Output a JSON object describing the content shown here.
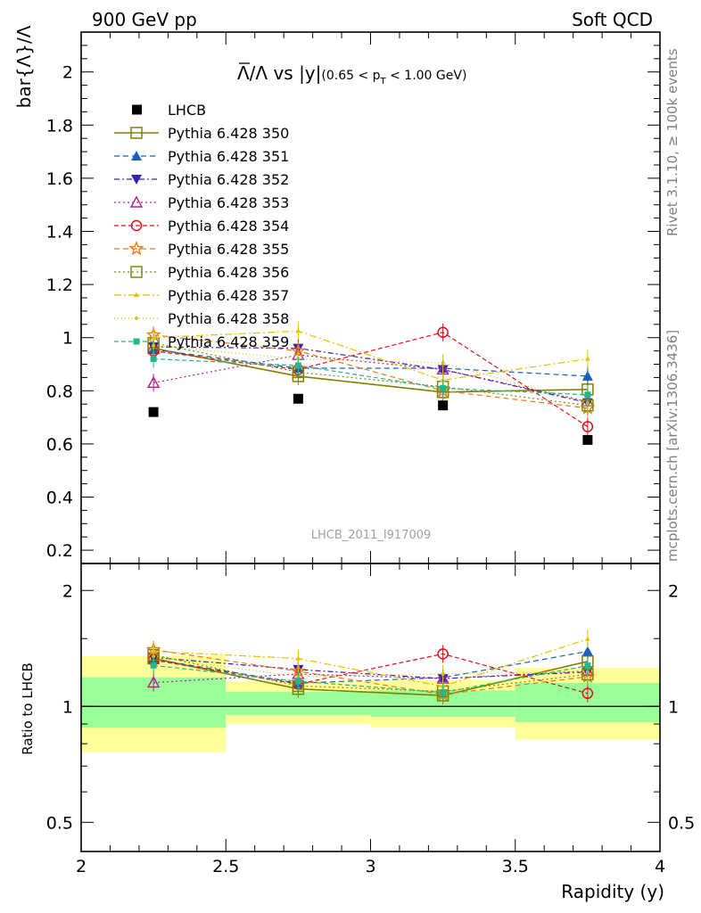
{
  "header": {
    "left": "900 GeV pp",
    "right": "Soft QCD"
  },
  "side_labels": {
    "rivet": "Rivet 3.1.10, ≥ 100k events",
    "mcplots": "mcplots.cern.ch [arXiv:1306.3436]"
  },
  "chart_data": [
    {
      "type": "line",
      "title": "Λ̅/Λ vs |y|(0.65 < p_T < 1.00 GeV)",
      "title_main": "Λ/Λ vs |y|",
      "title_small": "(0.65 < p",
      "title_sub": "T",
      "title_small_end": " < 1.00 GeV)",
      "ylabel": "bar{Λ}/Λ",
      "xlabel": "Rapidity (y)",
      "watermark": "LHCB_2011_I917009",
      "xlim": [
        2,
        4
      ],
      "ylim": [
        0.15,
        2.15
      ],
      "yticks": [
        "0.2",
        "0.4",
        "0.6",
        "0.8",
        "1",
        "1.2",
        "1.4",
        "1.6",
        "1.8",
        "2"
      ],
      "xticks": [
        "2",
        "2.5",
        "3",
        "3.5",
        "4"
      ],
      "legend_position": "top-left",
      "x": [
        2.25,
        2.75,
        3.25,
        3.75
      ],
      "data": {
        "name": "LHCB",
        "y": [
          0.72,
          0.77,
          0.745,
          0.615
        ],
        "err": [
          0.01,
          0.01,
          0.015,
          0.015
        ]
      },
      "series": [
        {
          "name": "Pythia 6.428 350",
          "color": "#808000",
          "marker": "square-open",
          "dash": "",
          "width": 1.6,
          "y": [
            0.96,
            0.855,
            0.795,
            0.805
          ]
        },
        {
          "name": "Pythia 6.428 351",
          "color": "#1560bd",
          "marker": "triangle-up",
          "dash": "6,4",
          "width": 1.2,
          "y": [
            0.955,
            0.885,
            0.885,
            0.855
          ]
        },
        {
          "name": "Pythia 6.428 352",
          "color": "#3a1fa8",
          "marker": "triangle-down",
          "dash": "6,3,2,3",
          "width": 1.2,
          "y": [
            0.965,
            0.96,
            0.88,
            0.755
          ]
        },
        {
          "name": "Pythia 6.428 353",
          "color": "#b0208a",
          "marker": "triangle-open",
          "dash": "2,3",
          "width": 1.2,
          "y": [
            0.83,
            0.935,
            0.88,
            0.76
          ]
        },
        {
          "name": "Pythia 6.428 354",
          "color": "#e0101c",
          "marker": "circle-open",
          "dash": "5,3",
          "width": 1.2,
          "y": [
            0.95,
            0.88,
            1.02,
            0.665
          ]
        },
        {
          "name": "Pythia 6.428 355",
          "color": "#f07818",
          "marker": "star-open",
          "dash": "6,4",
          "width": 1.2,
          "y": [
            1.01,
            0.95,
            0.8,
            0.735
          ]
        },
        {
          "name": "Pythia 6.428 356",
          "color": "#7a8a10",
          "marker": "square-open",
          "dash": "2,3",
          "width": 1.2,
          "y": [
            0.98,
            0.87,
            0.815,
            0.745
          ]
        },
        {
          "name": "Pythia 6.428 357",
          "color": "#e6c000",
          "marker": "tri-small",
          "dash": "8,3,2,3",
          "width": 1.2,
          "y": [
            1.0,
            1.025,
            0.84,
            0.92
          ]
        },
        {
          "name": "Pythia 6.428 358",
          "color": "#c8c820",
          "marker": "dot",
          "dash": "1,3",
          "width": 1.3,
          "y": [
            0.97,
            0.92,
            0.905,
            0.755
          ]
        },
        {
          "name": "Pythia 6.428 359",
          "color": "#20b888",
          "marker": "square-filled",
          "dash": "5,3",
          "width": 1.2,
          "y": [
            0.92,
            0.895,
            0.81,
            0.785
          ]
        }
      ]
    },
    {
      "type": "line",
      "ylabel": "Ratio to LHCB",
      "xlabel": "Rapidity (y)",
      "xlim": [
        2,
        4
      ],
      "ylim": [
        0.42,
        2.35
      ],
      "yscale": "log",
      "yticks": [
        "0.5",
        "1",
        "2"
      ],
      "xticks": [
        "2",
        "2.5",
        "3",
        "3.5",
        "4"
      ],
      "bands": [
        {
          "x0": 2.0,
          "x1": 2.5,
          "green": [
            0.88,
            1.19
          ],
          "yellow": [
            0.76,
            1.35
          ]
        },
        {
          "x0": 2.5,
          "x1": 3.0,
          "green": [
            0.95,
            1.09
          ],
          "yellow": [
            0.9,
            1.16
          ]
        },
        {
          "x0": 3.0,
          "x1": 3.5,
          "green": [
            0.94,
            1.1
          ],
          "yellow": [
            0.88,
            1.17
          ]
        },
        {
          "x0": 3.5,
          "x1": 4.0,
          "green": [
            0.91,
            1.15
          ],
          "yellow": [
            0.82,
            1.26
          ]
        }
      ],
      "x": [
        2.25,
        2.75,
        3.25,
        3.75
      ],
      "series": [
        {
          "name": "Pythia 6.428 350",
          "y": [
            1.333,
            1.11,
            1.067,
            1.309
          ]
        },
        {
          "name": "Pythia 6.428 351",
          "y": [
            1.326,
            1.149,
            1.188,
            1.39
          ]
        },
        {
          "name": "Pythia 6.428 352",
          "y": [
            1.34,
            1.247,
            1.181,
            1.228
          ]
        },
        {
          "name": "Pythia 6.428 353",
          "y": [
            1.153,
            1.214,
            1.181,
            1.236
          ]
        },
        {
          "name": "Pythia 6.428 354",
          "y": [
            1.319,
            1.143,
            1.369,
            1.081
          ]
        },
        {
          "name": "Pythia 6.428 355",
          "y": [
            1.403,
            1.234,
            1.074,
            1.195
          ]
        },
        {
          "name": "Pythia 6.428 356",
          "y": [
            1.361,
            1.13,
            1.094,
            1.211
          ]
        },
        {
          "name": "Pythia 6.428 357",
          "y": [
            1.389,
            1.331,
            1.128,
            1.496
          ]
        },
        {
          "name": "Pythia 6.428 358",
          "y": [
            1.347,
            1.195,
            1.215,
            1.228
          ]
        },
        {
          "name": "Pythia 6.428 359",
          "y": [
            1.278,
            1.162,
            1.087,
            1.276
          ]
        }
      ]
    }
  ]
}
